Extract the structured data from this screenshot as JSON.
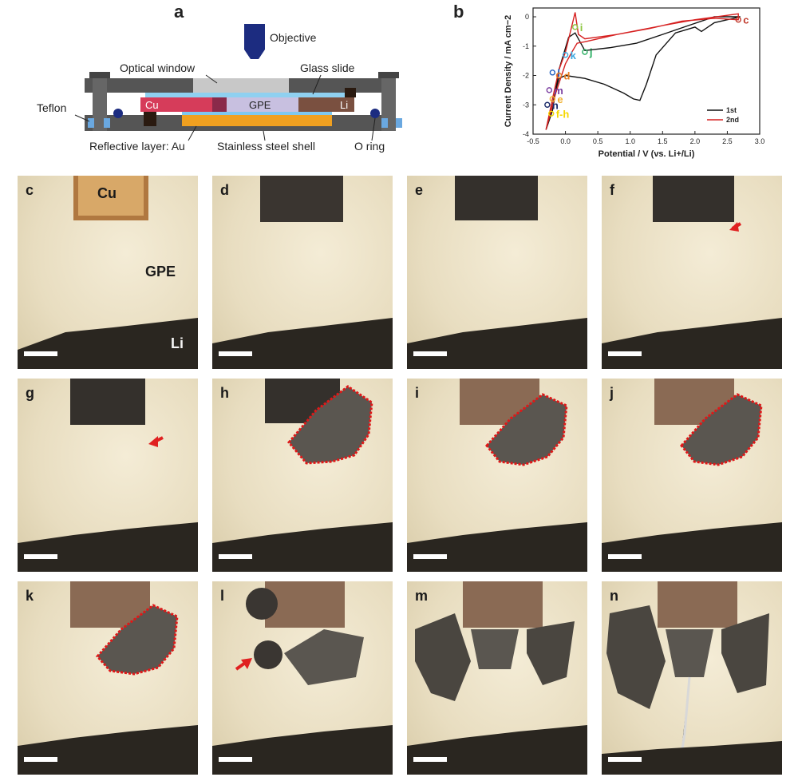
{
  "panels": {
    "a": "a",
    "b": "b",
    "c": "c",
    "d": "d",
    "e": "e",
    "f": "f",
    "g": "g",
    "h": "h",
    "i": "i",
    "j": "j",
    "k": "k",
    "l": "l",
    "m": "m",
    "n": "n"
  },
  "diagram": {
    "objective": "Objective",
    "optical_window": "Optical window",
    "glass_slide": "Glass slide",
    "teflon": "Teflon",
    "cu": "Cu",
    "gpe": "GPE",
    "li": "Li",
    "reflective_layer": "Reflective layer: Au",
    "stainless_shell": "Stainless steel shell",
    "o_ring": "O ring"
  },
  "micrograph_labels": {
    "cu": "Cu",
    "gpe": "GPE",
    "li": "Li"
  },
  "colors": {
    "cycle1": "#111111",
    "cycle2": "#d62020",
    "arrow": "#e02020",
    "outline": "#e01818"
  },
  "chart_data": {
    "type": "line",
    "xlabel": "Potential / V (vs. Li+/Li)",
    "ylabel": "Current Density / mA cm−2",
    "xlim": [
      -0.5,
      3.0
    ],
    "ylim": [
      -4,
      0.3
    ],
    "xticks": [
      "-0.5",
      "0.0",
      "0.5",
      "1.0",
      "1.5",
      "2.0",
      "2.5",
      "3.0"
    ],
    "yticks": [
      "0",
      "-1",
      "-2",
      "-3",
      "-4"
    ],
    "legend_position": "bottom-right",
    "series": [
      {
        "name": "1st",
        "color": "#111111",
        "x": [
          -0.3,
          -0.2,
          -0.15,
          -0.1,
          0.0,
          0.3,
          0.6,
          0.9,
          1.05,
          1.15,
          1.25,
          1.4,
          1.7,
          2.0,
          2.1,
          2.3,
          2.7,
          2.7,
          2.3,
          1.9,
          1.5,
          1.1,
          0.7,
          0.3,
          0.15,
          0.05,
          -0.1,
          -0.2,
          -0.3
        ],
        "y": [
          -3.85,
          -3.0,
          -2.5,
          -2.1,
          -2.0,
          -2.1,
          -2.3,
          -2.6,
          -2.8,
          -2.85,
          -2.3,
          -1.3,
          -0.55,
          -0.35,
          -0.5,
          -0.2,
          0.0,
          0.0,
          0.0,
          -0.3,
          -0.6,
          -0.9,
          -1.05,
          -1.15,
          -0.55,
          -0.7,
          -1.8,
          -3.2,
          -3.85
        ]
      },
      {
        "name": "2nd",
        "color": "#d62020",
        "x": [
          -0.3,
          -0.2,
          -0.1,
          0.0,
          0.1,
          0.15,
          0.2,
          0.3,
          0.8,
          1.5,
          2.0,
          2.67,
          2.67,
          2.3,
          1.8,
          1.3,
          0.8,
          0.3,
          0.18,
          0.1,
          0.0,
          -0.15,
          -0.3
        ],
        "y": [
          -3.85,
          -2.8,
          -1.8,
          -1.2,
          -0.3,
          0.15,
          -0.6,
          -0.75,
          -0.6,
          -0.3,
          -0.1,
          0.1,
          -0.1,
          -0.05,
          -0.15,
          -0.4,
          -0.6,
          -0.85,
          -0.9,
          -1.2,
          -1.6,
          -2.6,
          -3.85
        ]
      }
    ],
    "annotations": [
      {
        "label": "c",
        "x": 2.67,
        "y": -0.1,
        "color": "#c0392b"
      },
      {
        "label": "i",
        "x": 0.15,
        "y": -0.35,
        "color": "#8dc63f"
      },
      {
        "label": "j",
        "x": 0.3,
        "y": -1.2,
        "color": "#27ae60"
      },
      {
        "label": "k",
        "x": 0.0,
        "y": -1.3,
        "color": "#3aa7e0"
      },
      {
        "label": "l",
        "x": -0.2,
        "y": -1.9,
        "color": "#2060c0"
      },
      {
        "label": "d",
        "x": -0.1,
        "y": -2.0,
        "color": "#e67e22"
      },
      {
        "label": "m",
        "x": -0.25,
        "y": -2.5,
        "color": "#7b3fa0"
      },
      {
        "label": "e",
        "x": -0.2,
        "y": -2.8,
        "color": "#f0b030"
      },
      {
        "label": "n",
        "x": -0.28,
        "y": -3.0,
        "color": "#1a2a6a"
      },
      {
        "label": "f-h",
        "x": -0.22,
        "y": -3.3,
        "color": "#f5d800"
      }
    ]
  }
}
